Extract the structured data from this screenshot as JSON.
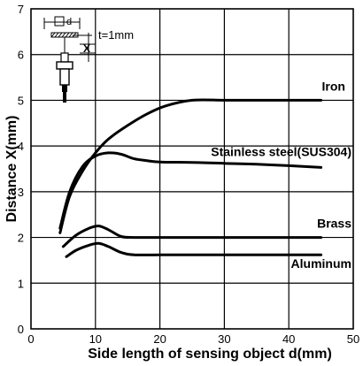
{
  "chart_data": {
    "type": "line",
    "xlabel": "Side length of sensing object d(mm)",
    "ylabel": "Distance X(mm)",
    "xlim": [
      0,
      50
    ],
    "ylim": [
      0,
      7
    ],
    "xticks": [
      "0",
      "10",
      "20",
      "30",
      "40",
      "50"
    ],
    "yticks": [
      "0",
      "1",
      "2",
      "3",
      "4",
      "5",
      "6",
      "7"
    ],
    "grid": true,
    "inset_label": "t=1mm",
    "inset_symbols": {
      "d": "d",
      "x": "X"
    },
    "series": [
      {
        "name": "Iron",
        "x": [
          4.5,
          6,
          8,
          10,
          12,
          15,
          18,
          21,
          25,
          30,
          35,
          40,
          45
        ],
        "y": [
          2.1,
          2.9,
          3.45,
          3.85,
          4.15,
          4.45,
          4.7,
          4.88,
          5.0,
          5.0,
          5.0,
          5.0,
          5.0
        ]
      },
      {
        "name": "Stainless steel(SUS304)",
        "x": [
          4.5,
          6,
          8,
          10,
          12,
          14,
          16,
          18,
          20,
          25,
          30,
          35,
          40,
          45
        ],
        "y": [
          2.2,
          3.0,
          3.55,
          3.78,
          3.85,
          3.82,
          3.72,
          3.68,
          3.65,
          3.64,
          3.62,
          3.6,
          3.57,
          3.53
        ]
      },
      {
        "name": "Brass",
        "x": [
          5,
          7,
          9,
          10.5,
          12,
          14,
          16,
          20,
          25,
          30,
          35,
          40,
          45
        ],
        "y": [
          1.8,
          2.05,
          2.2,
          2.25,
          2.17,
          2.02,
          2.0,
          2.0,
          2.0,
          2.0,
          2.0,
          2.0,
          2.0
        ]
      },
      {
        "name": "Aluminum",
        "x": [
          5.5,
          7,
          9,
          10.5,
          12,
          14,
          16,
          20,
          25,
          30,
          35,
          40,
          45
        ],
        "y": [
          1.58,
          1.72,
          1.83,
          1.87,
          1.8,
          1.67,
          1.62,
          1.62,
          1.62,
          1.62,
          1.62,
          1.62,
          1.62
        ]
      }
    ]
  }
}
